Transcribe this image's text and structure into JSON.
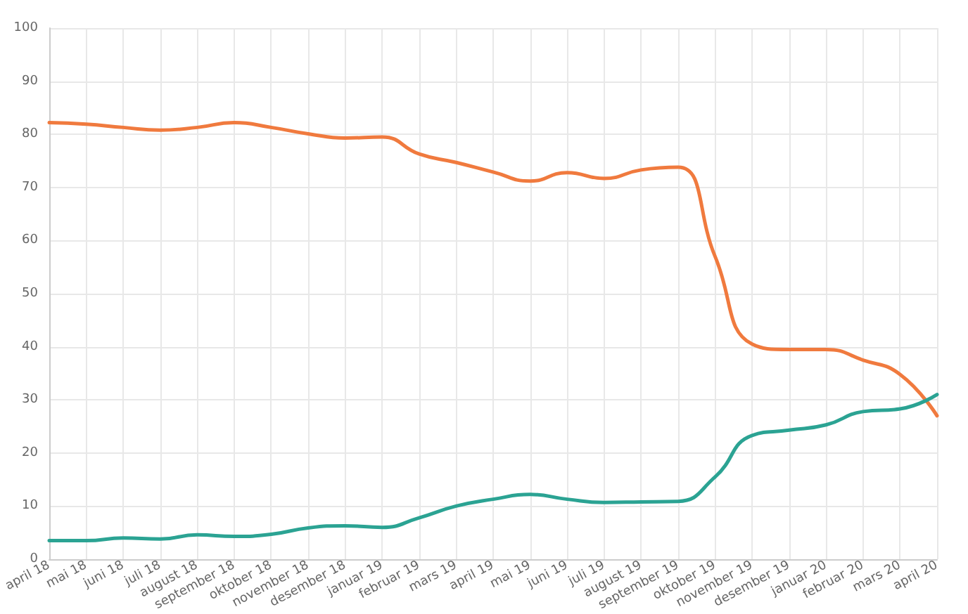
{
  "chart_data": {
    "type": "line",
    "categories": [
      "april 18",
      "mai 18",
      "juni 18",
      "juli 18",
      "august 18",
      "september 18",
      "oktober 18",
      "november 18",
      "desember 18",
      "januar 19",
      "februar 19",
      "mars 19",
      "april 19",
      "mai 19",
      "juni 19",
      "juli 19",
      "august 19",
      "september 19",
      "oktober 19",
      "november 19",
      "desember 19",
      "januar 20",
      "februar 20",
      "mars 20",
      "april 20"
    ],
    "series": [
      {
        "color": "#f07a3e",
        "values": [
          82.2,
          81.9,
          81.3,
          80.8,
          81.3,
          82.2,
          81.3,
          80.1,
          79.3,
          79.5,
          76.3,
          74.7,
          72.9,
          71.2,
          72.8,
          71.7,
          73.3,
          73.8,
          57,
          40.5,
          39.5,
          39.5,
          37.5,
          34.8,
          27
        ]
      },
      {
        "color": "#2ba393",
        "values": [
          3.5,
          3.5,
          4,
          3.8,
          4.6,
          4.3,
          4.7,
          5.9,
          6.3,
          6,
          7.8,
          10,
          11.3,
          12.2,
          11.3,
          10.7,
          10.8,
          10.9,
          15.5,
          23.3,
          24.3,
          25.3,
          27.8,
          28.3,
          31
        ]
      }
    ],
    "ylim": [
      0,
      100
    ],
    "yticks": [
      0,
      10,
      20,
      30,
      40,
      50,
      60,
      70,
      80,
      90,
      100
    ],
    "grid": true,
    "marker": "none",
    "line_style": "solid"
  }
}
